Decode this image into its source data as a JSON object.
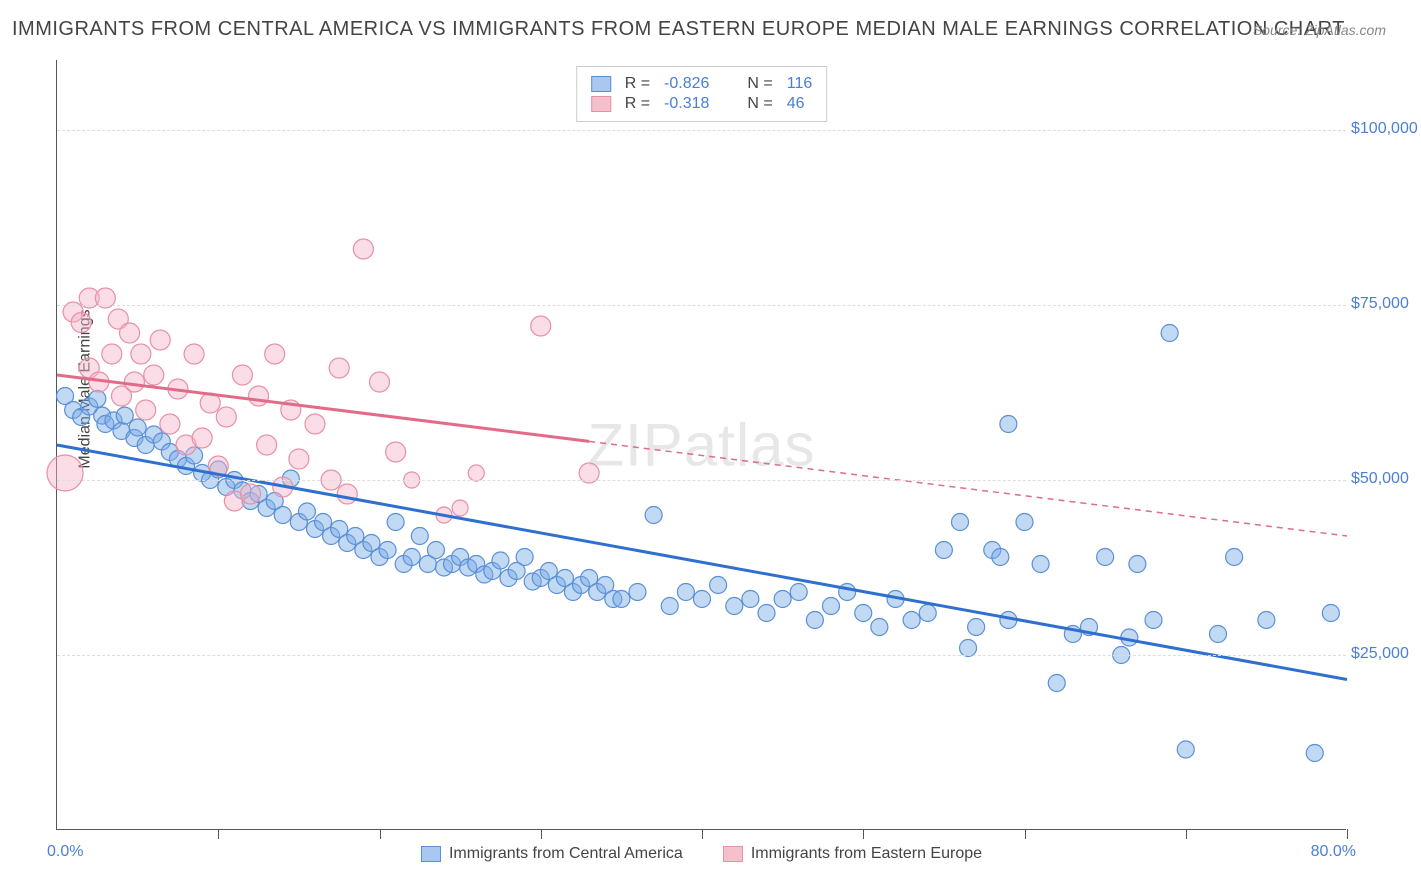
{
  "title": "IMMIGRANTS FROM CENTRAL AMERICA VS IMMIGRANTS FROM EASTERN EUROPE MEDIAN MALE EARNINGS CORRELATION CHART",
  "source_label": "Source:",
  "source_name": "ZipAtlas.com",
  "watermark": "ZIPatlas",
  "ylabel": "Median Male Earnings",
  "xaxis_min_label": "0.0%",
  "xaxis_max_label": "80.0%",
  "xlim": [
    0,
    80
  ],
  "ylim": [
    0,
    110000
  ],
  "ytick_values": [
    25000,
    50000,
    75000,
    100000
  ],
  "ytick_labels": [
    "$25,000",
    "$50,000",
    "$75,000",
    "$100,000"
  ],
  "xtick_values": [
    0,
    10,
    20,
    30,
    40,
    50,
    60,
    70,
    80
  ],
  "background_color": "#ffffff",
  "grid_color": "#dddddd",
  "grid_dash": "5,5",
  "axis_color": "#555555",
  "label_color": "#444444",
  "value_color": "#4a7fd6",
  "title_fontsize": 20,
  "label_fontsize": 16,
  "series": {
    "a": {
      "name": "Immigrants from Central America",
      "swatch_fill": "#a8c8f0",
      "swatch_stroke": "#5b8fd6",
      "point_fill": "rgba(120,170,230,0.45)",
      "point_stroke": "#5b8fd6",
      "radius": 8.5,
      "line_color": "#2f6fd0",
      "line_width": 3,
      "r_label": "R =",
      "r_value": "-0.826",
      "n_label": "N =",
      "n_value": "116",
      "regression": {
        "x1": 0,
        "y1": 55000,
        "x2": 80,
        "y2": 21500,
        "solid_to_x": 80
      },
      "points": [
        [
          0.5,
          62000
        ],
        [
          1,
          60000
        ],
        [
          1.5,
          59000
        ],
        [
          2,
          60500
        ],
        [
          2.5,
          61600
        ],
        [
          2.8,
          59200
        ],
        [
          3,
          58000
        ],
        [
          3.5,
          58500
        ],
        [
          4,
          57000
        ],
        [
          4.2,
          59200
        ],
        [
          4.8,
          56000
        ],
        [
          5,
          57500
        ],
        [
          5.5,
          55000
        ],
        [
          6,
          56500
        ],
        [
          6.5,
          55500
        ],
        [
          7,
          54000
        ],
        [
          7.5,
          53000
        ],
        [
          8,
          52000
        ],
        [
          8.5,
          53500
        ],
        [
          9,
          51000
        ],
        [
          9.5,
          50000
        ],
        [
          10,
          51500
        ],
        [
          10.5,
          49000
        ],
        [
          11,
          50000
        ],
        [
          11.5,
          48500
        ],
        [
          12,
          47000
        ],
        [
          12.5,
          48000
        ],
        [
          13,
          46000
        ],
        [
          13.5,
          47000
        ],
        [
          14,
          45000
        ],
        [
          14.5,
          50200
        ],
        [
          15,
          44000
        ],
        [
          15.5,
          45500
        ],
        [
          16,
          43000
        ],
        [
          16.5,
          44000
        ],
        [
          17,
          42000
        ],
        [
          17.5,
          43000
        ],
        [
          18,
          41000
        ],
        [
          18.5,
          42000
        ],
        [
          19,
          40000
        ],
        [
          19.5,
          41000
        ],
        [
          20,
          39000
        ],
        [
          20.5,
          40000
        ],
        [
          21,
          44000
        ],
        [
          21.5,
          38000
        ],
        [
          22,
          39000
        ],
        [
          22.5,
          42000
        ],
        [
          23,
          38000
        ],
        [
          23.5,
          40000
        ],
        [
          24,
          37500
        ],
        [
          24.5,
          38000
        ],
        [
          25,
          39000
        ],
        [
          25.5,
          37500
        ],
        [
          26,
          38000
        ],
        [
          26.5,
          36500
        ],
        [
          27,
          37000
        ],
        [
          27.5,
          38500
        ],
        [
          28,
          36000
        ],
        [
          28.5,
          37000
        ],
        [
          29,
          39000
        ],
        [
          29.5,
          35500
        ],
        [
          30,
          36000
        ],
        [
          30.5,
          37000
        ],
        [
          31,
          35000
        ],
        [
          31.5,
          36000
        ],
        [
          32,
          34000
        ],
        [
          32.5,
          35000
        ],
        [
          33,
          36000
        ],
        [
          33.5,
          34000
        ],
        [
          34,
          35000
        ],
        [
          34.5,
          33000
        ],
        [
          35,
          33000
        ],
        [
          36,
          34000
        ],
        [
          37,
          45000
        ],
        [
          38,
          32000
        ],
        [
          39,
          34000
        ],
        [
          40,
          33000
        ],
        [
          41,
          35000
        ],
        [
          42,
          32000
        ],
        [
          43,
          33000
        ],
        [
          44,
          31000
        ],
        [
          45,
          33000
        ],
        [
          46,
          34000
        ],
        [
          47,
          30000
        ],
        [
          48,
          32000
        ],
        [
          49,
          34000
        ],
        [
          50,
          31000
        ],
        [
          51,
          29000
        ],
        [
          52,
          33000
        ],
        [
          53,
          30000
        ],
        [
          54,
          31000
        ],
        [
          55,
          40000
        ],
        [
          56,
          44000
        ],
        [
          56.5,
          26000
        ],
        [
          57,
          29000
        ],
        [
          58,
          40000
        ],
        [
          58.5,
          39000
        ],
        [
          59,
          30000
        ],
        [
          59,
          58000
        ],
        [
          60,
          44000
        ],
        [
          61,
          38000
        ],
        [
          62,
          21000
        ],
        [
          63,
          28000
        ],
        [
          64,
          29000
        ],
        [
          65,
          39000
        ],
        [
          66,
          25000
        ],
        [
          66.5,
          27500
        ],
        [
          67,
          38000
        ],
        [
          68,
          30000
        ],
        [
          69,
          71000
        ],
        [
          70,
          11500
        ],
        [
          72,
          28000
        ],
        [
          73,
          39000
        ],
        [
          75,
          30000
        ],
        [
          78,
          11000
        ],
        [
          79,
          31000
        ]
      ]
    },
    "b": {
      "name": "Immigrants from Eastern Europe",
      "swatch_fill": "#f4c0cb",
      "swatch_stroke": "#e890a5",
      "point_fill": "rgba(244,180,200,0.45)",
      "point_stroke": "#e890a5",
      "radius": 8.5,
      "line_color": "#e26b89",
      "line_width": 3,
      "r_label": "R =",
      "r_value": "-0.318",
      "n_label": "N =",
      "n_value": "46",
      "regression": {
        "x1": 0,
        "y1": 65000,
        "x2": 80,
        "y2": 42000,
        "solid_to_x": 33
      },
      "points": [
        [
          0.5,
          51000,
          18
        ],
        [
          1,
          74000,
          10
        ],
        [
          1.5,
          72500,
          10
        ],
        [
          2,
          66000,
          10
        ],
        [
          2,
          76000,
          10
        ],
        [
          2.6,
          64000,
          10
        ],
        [
          3,
          76000,
          10
        ],
        [
          3.4,
          68000,
          10
        ],
        [
          3.8,
          73000,
          10
        ],
        [
          4,
          62000,
          10
        ],
        [
          4.5,
          71000,
          10
        ],
        [
          4.8,
          64000,
          10
        ],
        [
          5.2,
          68000,
          10
        ],
        [
          5.5,
          60000,
          10
        ],
        [
          6,
          65000,
          10
        ],
        [
          6.4,
          70000,
          10
        ],
        [
          7,
          58000,
          10
        ],
        [
          7.5,
          63000,
          10
        ],
        [
          8,
          55000,
          10
        ],
        [
          8.5,
          68000,
          10
        ],
        [
          9,
          56000,
          10
        ],
        [
          9.5,
          61000,
          10
        ],
        [
          10,
          52000,
          10
        ],
        [
          10.5,
          59000,
          10
        ],
        [
          11,
          47000,
          10
        ],
        [
          11.5,
          65000,
          10
        ],
        [
          12,
          48000,
          10
        ],
        [
          12.5,
          62000,
          10
        ],
        [
          13,
          55000,
          10
        ],
        [
          13.5,
          68000,
          10
        ],
        [
          14,
          49000,
          10
        ],
        [
          14.5,
          60000,
          10
        ],
        [
          15,
          53000,
          10
        ],
        [
          16,
          58000,
          10
        ],
        [
          17,
          50000,
          10
        ],
        [
          17.5,
          66000,
          10
        ],
        [
          18,
          48000,
          10
        ],
        [
          19,
          83000,
          10
        ],
        [
          20,
          64000,
          10
        ],
        [
          21,
          54000,
          10
        ],
        [
          22,
          50000,
          8
        ],
        [
          24,
          45000,
          8
        ],
        [
          25,
          46000,
          8
        ],
        [
          26,
          51000,
          8
        ],
        [
          30,
          72000,
          10
        ],
        [
          33,
          51000,
          10
        ]
      ]
    }
  },
  "bottom_legend": [
    {
      "series": "a"
    },
    {
      "series": "b"
    }
  ]
}
